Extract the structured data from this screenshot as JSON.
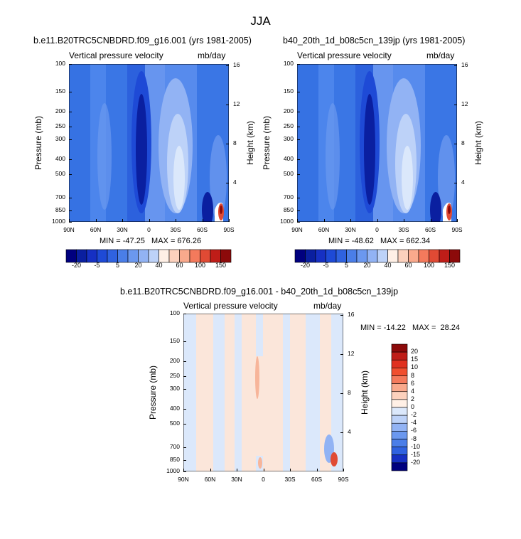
{
  "page": {
    "title": "JJA"
  },
  "colors": {
    "panel_bg": "#3f7fe8",
    "diff_bg": "#dbe8fb",
    "frame": "#000000"
  },
  "axes": {
    "x_ticks": [
      "90N",
      "60N",
      "30N",
      "0",
      "30S",
      "60S",
      "90S"
    ],
    "p_ticks": [
      "100",
      "150",
      "200",
      "250",
      "300",
      "400",
      "500",
      "700",
      "850",
      "1000"
    ],
    "h_ticks": [
      "4",
      "8",
      "12",
      "16"
    ],
    "ylabel_left": "Pressure (mb)",
    "ylabel_right": "Height (km)",
    "var_label": "Vertical pressure velocity",
    "units_label": "mb/day"
  },
  "chart_data": [
    {
      "type": "heatmap",
      "title": "b.e11.B20TRC5CNBDRD.f09_g16.001 (yrs 1981-2005)",
      "stats": "MIN = -47.25   MAX = 676.26",
      "x_range": [
        "90N",
        "90S"
      ],
      "y_range_mb": [
        1000,
        100
      ],
      "colorbar": {
        "labels": [
          "-20",
          "-5",
          "5",
          "20",
          "40",
          "60",
          "100",
          "150"
        ],
        "colors": [
          "#00007f",
          "#0a1fa0",
          "#1630c3",
          "#1e4ad6",
          "#2f62e0",
          "#4a7ee8",
          "#6b98ef",
          "#92b3f4",
          "#bdd2f8",
          "#fff0e6",
          "#fcd1bd",
          "#f9a98c",
          "#f47a5c",
          "#e04a34",
          "#bf1d18",
          "#8c0a0a"
        ]
      }
    },
    {
      "type": "heatmap",
      "title": "b40_20th_1d_b08c5cn_139jp (yrs 1981-2005)",
      "stats": "MIN = -48.62   MAX = 662.34",
      "x_range": [
        "90N",
        "90S"
      ],
      "y_range_mb": [
        1000,
        100
      ],
      "colorbar": {
        "labels": [
          "-20",
          "-5",
          "5",
          "20",
          "40",
          "60",
          "100",
          "150"
        ],
        "colors": [
          "#00007f",
          "#0a1fa0",
          "#1630c3",
          "#1e4ad6",
          "#2f62e0",
          "#4a7ee8",
          "#6b98ef",
          "#92b3f4",
          "#bdd2f8",
          "#fff0e6",
          "#fcd1bd",
          "#f9a98c",
          "#f47a5c",
          "#e04a34",
          "#bf1d18",
          "#8c0a0a"
        ]
      }
    },
    {
      "type": "heatmap",
      "title": "b.e11.B20TRC5CNBDRD.f09_g16.001 - b40_20th_1d_b08c5cn_139jp",
      "stats": "MIN = -14.22   MAX =  28.24",
      "x_range": [
        "90N",
        "90S"
      ],
      "y_range_mb": [
        1000,
        100
      ],
      "colorbar": {
        "labels": [
          "20",
          "15",
          "10",
          "8",
          "6",
          "4",
          "2",
          "0",
          "-2",
          "-4",
          "-6",
          "-8",
          "-10",
          "-15",
          "-20"
        ],
        "colors": [
          "#8c0a0a",
          "#bf1d18",
          "#e0311f",
          "#f04f2f",
          "#f47a5c",
          "#f9a98c",
          "#fcd1bd",
          "#fff0e6",
          "#dbe8fb",
          "#bdd2f8",
          "#92b3f4",
          "#6b98ef",
          "#4a7ee8",
          "#2f62e0",
          "#1630c3",
          "#00007f"
        ]
      }
    }
  ]
}
